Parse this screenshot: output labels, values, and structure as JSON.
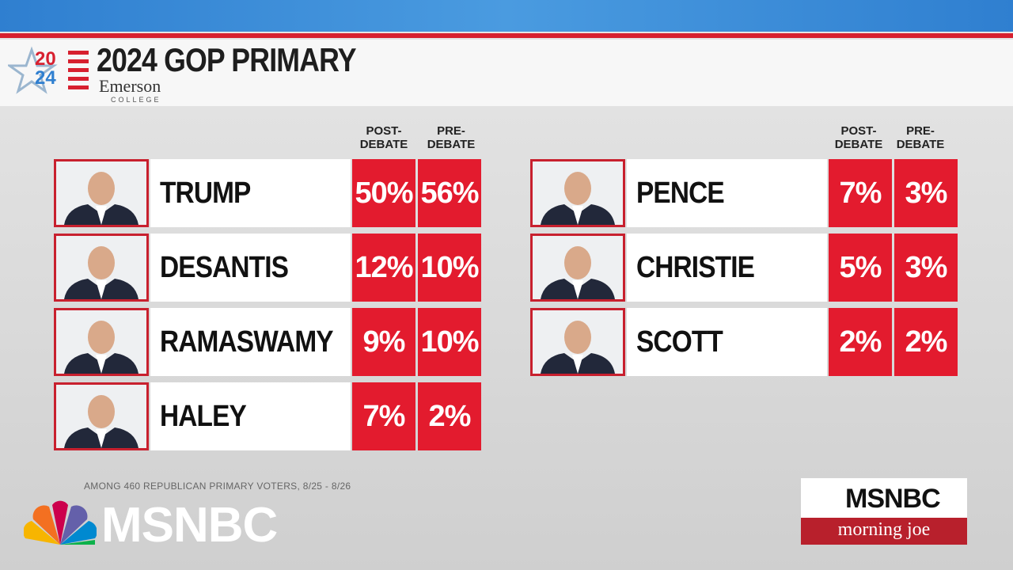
{
  "header": {
    "logo_top": "20",
    "logo_bottom": "24",
    "title": "2024 GOP PRIMARY",
    "pollster": "Emerson",
    "pollster_sub": "COLLEGE"
  },
  "column_headers": {
    "post": "POST-DEBATE",
    "pre": "PRE-DEBATE"
  },
  "left_table": {
    "rows": [
      {
        "name": "TRUMP",
        "post": "50%",
        "pre": "56%"
      },
      {
        "name": "DESANTIS",
        "post": "12%",
        "pre": "10%"
      },
      {
        "name": "RAMASWAMY",
        "post": "9%",
        "pre": "10%"
      },
      {
        "name": "HALEY",
        "post": "7%",
        "pre": "2%"
      }
    ]
  },
  "right_table": {
    "rows": [
      {
        "name": "PENCE",
        "post": "7%",
        "pre": "3%"
      },
      {
        "name": "CHRISTIE",
        "post": "5%",
        "pre": "3%"
      },
      {
        "name": "SCOTT",
        "post": "2%",
        "pre": "2%"
      }
    ]
  },
  "footnote": "AMONG 460 REPUBLICAN PRIMARY VOTERS, 8/25 - 8/26",
  "network": "MSNBC",
  "show_logo": {
    "network": "MSNBC",
    "show": "morning joe"
  }
}
